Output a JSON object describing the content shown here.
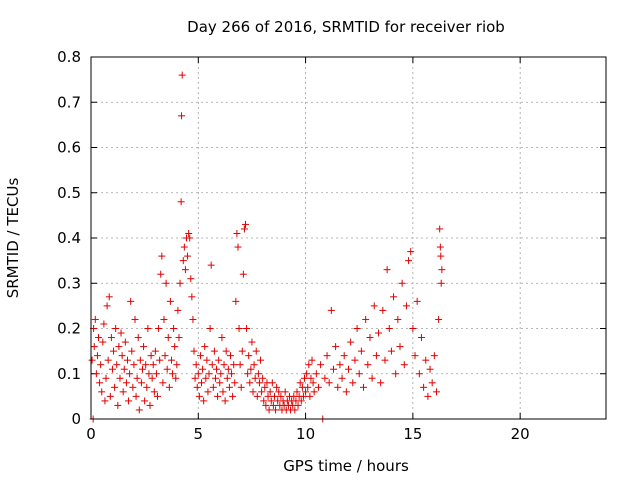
{
  "chart_data": {
    "type": "scatter",
    "title": "Day 266 of 2016, SRMTID for receiver riob",
    "xlabel": "GPS time / hours",
    "ylabel": "SRMTID / TECUs",
    "xlim": [
      0,
      24
    ],
    "ylim": [
      0,
      0.8
    ],
    "xticks": [
      0,
      5,
      10,
      15,
      20
    ],
    "yticks": [
      0,
      0.1,
      0.2,
      0.3,
      0.4,
      0.5,
      0.6,
      0.7,
      0.8
    ],
    "xtick_labels": [
      "0",
      "5",
      "10",
      "15",
      "20"
    ],
    "ytick_labels": [
      "0",
      "0.1",
      "0.2",
      "0.3",
      "0.4",
      "0.5",
      "0.6",
      "0.7",
      "0.8"
    ],
    "grid": true,
    "marker": "+",
    "color": "#e00000",
    "series": [
      {
        "name": "SRMTID",
        "points": [
          [
            0.05,
            0.13
          ],
          [
            0.1,
            0.0
          ],
          [
            0.12,
            0.2
          ],
          [
            0.15,
            0.16
          ],
          [
            0.2,
            0.22
          ],
          [
            0.25,
            0.1
          ],
          [
            0.3,
            0.14
          ],
          [
            0.35,
            0.18
          ],
          [
            0.4,
            0.08
          ],
          [
            0.45,
            0.12
          ],
          [
            0.5,
            0.06
          ],
          [
            0.55,
            0.17
          ],
          [
            0.6,
            0.21
          ],
          [
            0.65,
            0.04
          ],
          [
            0.7,
            0.09
          ],
          [
            0.75,
            0.25
          ],
          [
            0.8,
            0.13
          ],
          [
            0.85,
            0.27
          ],
          [
            0.9,
            0.05
          ],
          [
            0.95,
            0.18
          ],
          [
            1.0,
            0.11
          ],
          [
            1.05,
            0.15
          ],
          [
            1.1,
            0.07
          ],
          [
            1.15,
            0.2
          ],
          [
            1.2,
            0.12
          ],
          [
            1.25,
            0.03
          ],
          [
            1.3,
            0.16
          ],
          [
            1.35,
            0.09
          ],
          [
            1.4,
            0.19
          ],
          [
            1.45,
            0.14
          ],
          [
            1.5,
            0.06
          ],
          [
            1.55,
            0.11
          ],
          [
            1.6,
            0.17
          ],
          [
            1.65,
            0.08
          ],
          [
            1.7,
            0.13
          ],
          [
            1.75,
            0.04
          ],
          [
            1.8,
            0.1
          ],
          [
            1.85,
            0.26
          ],
          [
            1.9,
            0.15
          ],
          [
            1.95,
            0.07
          ],
          [
            2.0,
            0.12
          ],
          [
            2.05,
            0.22
          ],
          [
            2.1,
            0.05
          ],
          [
            2.15,
            0.09
          ],
          [
            2.2,
            0.18
          ],
          [
            2.25,
            0.02
          ],
          [
            2.3,
            0.13
          ],
          [
            2.35,
            0.08
          ],
          [
            2.4,
            0.11
          ],
          [
            2.45,
            0.16
          ],
          [
            2.5,
            0.04
          ],
          [
            2.55,
            0.12
          ],
          [
            2.6,
            0.07
          ],
          [
            2.65,
            0.2
          ],
          [
            2.7,
            0.1
          ],
          [
            2.75,
            0.03
          ],
          [
            2.8,
            0.14
          ],
          [
            2.85,
            0.09
          ],
          [
            2.9,
            0.12
          ],
          [
            2.95,
            0.06
          ],
          [
            3.0,
            0.15
          ],
          [
            3.05,
            0.1
          ],
          [
            3.1,
            0.05
          ],
          [
            3.15,
            0.2
          ],
          [
            3.2,
            0.13
          ],
          [
            3.25,
            0.32
          ],
          [
            3.3,
            0.36
          ],
          [
            3.35,
            0.08
          ],
          [
            3.4,
            0.22
          ],
          [
            3.45,
            0.14
          ],
          [
            3.5,
            0.3
          ],
          [
            3.55,
            0.11
          ],
          [
            3.6,
            0.18
          ],
          [
            3.65,
            0.07
          ],
          [
            3.7,
            0.26
          ],
          [
            3.75,
            0.13
          ],
          [
            3.8,
            0.1
          ],
          [
            3.85,
            0.2
          ],
          [
            3.9,
            0.16
          ],
          [
            3.95,
            0.09
          ],
          [
            4.0,
            0.12
          ],
          [
            4.05,
            0.24
          ],
          [
            4.1,
            0.18
          ],
          [
            4.15,
            0.3
          ],
          [
            4.2,
            0.48
          ],
          [
            4.22,
            0.67
          ],
          [
            4.25,
            0.76
          ],
          [
            4.3,
            0.35
          ],
          [
            4.35,
            0.38
          ],
          [
            4.4,
            0.33
          ],
          [
            4.45,
            0.4
          ],
          [
            4.5,
            0.36
          ],
          [
            4.55,
            0.41
          ],
          [
            4.6,
            0.4
          ],
          [
            4.65,
            0.31
          ],
          [
            4.7,
            0.27
          ],
          [
            4.75,
            0.22
          ],
          [
            4.8,
            0.15
          ],
          [
            4.85,
            0.09
          ],
          [
            4.9,
            0.12
          ],
          [
            4.95,
            0.07
          ],
          [
            5.0,
            0.1
          ],
          [
            5.05,
            0.05
          ],
          [
            5.1,
            0.14
          ],
          [
            5.15,
            0.08
          ],
          [
            5.2,
            0.11
          ],
          [
            5.25,
            0.04
          ],
          [
            5.3,
            0.16
          ],
          [
            5.35,
            0.09
          ],
          [
            5.4,
            0.13
          ],
          [
            5.45,
            0.06
          ],
          [
            5.5,
            0.1
          ],
          [
            5.55,
            0.2
          ],
          [
            5.6,
            0.34
          ],
          [
            5.65,
            0.12
          ],
          [
            5.7,
            0.07
          ],
          [
            5.75,
            0.15
          ],
          [
            5.8,
            0.09
          ],
          [
            5.85,
            0.11
          ],
          [
            5.9,
            0.05
          ],
          [
            5.95,
            0.13
          ],
          [
            6.0,
            0.08
          ],
          [
            6.05,
            0.1
          ],
          [
            6.1,
            0.18
          ],
          [
            6.15,
            0.06
          ],
          [
            6.2,
            0.12
          ],
          [
            6.25,
            0.04
          ],
          [
            6.3,
            0.15
          ],
          [
            6.35,
            0.09
          ],
          [
            6.4,
            0.11
          ],
          [
            6.45,
            0.07
          ],
          [
            6.5,
            0.14
          ],
          [
            6.55,
            0.1
          ],
          [
            6.6,
            0.05
          ],
          [
            6.65,
            0.12
          ],
          [
            6.7,
            0.08
          ],
          [
            6.75,
            0.26
          ],
          [
            6.8,
            0.41
          ],
          [
            6.85,
            0.38
          ],
          [
            6.9,
            0.2
          ],
          [
            6.95,
            0.12
          ],
          [
            7.0,
            0.07
          ],
          [
            7.05,
            0.15
          ],
          [
            7.1,
            0.32
          ],
          [
            7.15,
            0.42
          ],
          [
            7.2,
            0.43
          ],
          [
            7.25,
            0.2
          ],
          [
            7.3,
            0.1
          ],
          [
            7.35,
            0.14
          ],
          [
            7.4,
            0.08
          ],
          [
            7.45,
            0.11
          ],
          [
            7.5,
            0.17
          ],
          [
            7.55,
            0.06
          ],
          [
            7.6,
            0.12
          ],
          [
            7.65,
            0.09
          ],
          [
            7.7,
            0.15
          ],
          [
            7.75,
            0.05
          ],
          [
            7.8,
            0.1
          ],
          [
            7.85,
            0.08
          ],
          [
            7.9,
            0.13
          ],
          [
            7.95,
            0.06
          ],
          [
            8.0,
            0.09
          ],
          [
            8.05,
            0.04
          ],
          [
            8.1,
            0.07
          ],
          [
            8.15,
            0.03
          ],
          [
            8.2,
            0.08
          ],
          [
            8.25,
            0.05
          ],
          [
            8.3,
            0.02
          ],
          [
            8.35,
            0.06
          ],
          [
            8.4,
            0.04
          ],
          [
            8.45,
            0.08
          ],
          [
            8.5,
            0.03
          ],
          [
            8.55,
            0.05
          ],
          [
            8.6,
            0.02
          ],
          [
            8.65,
            0.07
          ],
          [
            8.7,
            0.04
          ],
          [
            8.75,
            0.06
          ],
          [
            8.8,
            0.03
          ],
          [
            8.85,
            0.05
          ],
          [
            8.9,
            0.02
          ],
          [
            8.95,
            0.04
          ],
          [
            9.0,
            0.03
          ],
          [
            9.05,
            0.06
          ],
          [
            9.1,
            0.02
          ],
          [
            9.15,
            0.04
          ],
          [
            9.2,
            0.03
          ],
          [
            9.25,
            0.05
          ],
          [
            9.3,
            0.02
          ],
          [
            9.35,
            0.04
          ],
          [
            9.4,
            0.03
          ],
          [
            9.45,
            0.05
          ],
          [
            9.5,
            0.02
          ],
          [
            9.55,
            0.04
          ],
          [
            9.6,
            0.06
          ],
          [
            9.65,
            0.03
          ],
          [
            9.7,
            0.05
          ],
          [
            9.75,
            0.08
          ],
          [
            9.8,
            0.04
          ],
          [
            9.85,
            0.07
          ],
          [
            9.9,
            0.05
          ],
          [
            9.95,
            0.09
          ],
          [
            10.0,
            0.06
          ],
          [
            10.05,
            0.1
          ],
          [
            10.1,
            0.07
          ],
          [
            10.15,
            0.12
          ],
          [
            10.2,
            0.05
          ],
          [
            10.25,
            0.09
          ],
          [
            10.3,
            0.13
          ],
          [
            10.35,
            0.08
          ],
          [
            10.4,
            0.06
          ],
          [
            10.5,
            0.1
          ],
          [
            10.6,
            0.07
          ],
          [
            10.7,
            0.12
          ],
          [
            10.8,
            0.0
          ],
          [
            10.9,
            0.09
          ],
          [
            11.0,
            0.14
          ],
          [
            11.1,
            0.08
          ],
          [
            11.2,
            0.24
          ],
          [
            11.3,
            0.11
          ],
          [
            11.4,
            0.16
          ],
          [
            11.5,
            0.07
          ],
          [
            11.6,
            0.12
          ],
          [
            11.7,
            0.09
          ],
          [
            11.8,
            0.14
          ],
          [
            11.9,
            0.06
          ],
          [
            12.0,
            0.11
          ],
          [
            12.1,
            0.17
          ],
          [
            12.2,
            0.08
          ],
          [
            12.3,
            0.13
          ],
          [
            12.4,
            0.2
          ],
          [
            12.5,
            0.1
          ],
          [
            12.6,
            0.15
          ],
          [
            12.7,
            0.07
          ],
          [
            12.8,
            0.22
          ],
          [
            12.9,
            0.12
          ],
          [
            13.0,
            0.18
          ],
          [
            13.1,
            0.09
          ],
          [
            13.2,
            0.25
          ],
          [
            13.3,
            0.14
          ],
          [
            13.4,
            0.19
          ],
          [
            13.5,
            0.08
          ],
          [
            13.6,
            0.24
          ],
          [
            13.7,
            0.13
          ],
          [
            13.8,
            0.33
          ],
          [
            13.9,
            0.2
          ],
          [
            14.0,
            0.15
          ],
          [
            14.1,
            0.27
          ],
          [
            14.2,
            0.1
          ],
          [
            14.3,
            0.22
          ],
          [
            14.4,
            0.16
          ],
          [
            14.5,
            0.3
          ],
          [
            14.6,
            0.12
          ],
          [
            14.7,
            0.25
          ],
          [
            14.8,
            0.35
          ],
          [
            14.9,
            0.37
          ],
          [
            15.0,
            0.2
          ],
          [
            15.1,
            0.14
          ],
          [
            15.2,
            0.26
          ],
          [
            15.3,
            0.1
          ],
          [
            15.4,
            0.18
          ],
          [
            15.5,
            0.07
          ],
          [
            15.6,
            0.13
          ],
          [
            15.7,
            0.05
          ],
          [
            15.8,
            0.11
          ],
          [
            15.9,
            0.08
          ],
          [
            16.0,
            0.14
          ],
          [
            16.1,
            0.06
          ],
          [
            16.2,
            0.22
          ],
          [
            16.25,
            0.42
          ],
          [
            16.28,
            0.38
          ],
          [
            16.3,
            0.36
          ],
          [
            16.32,
            0.3
          ],
          [
            16.35,
            0.33
          ]
        ]
      }
    ]
  }
}
